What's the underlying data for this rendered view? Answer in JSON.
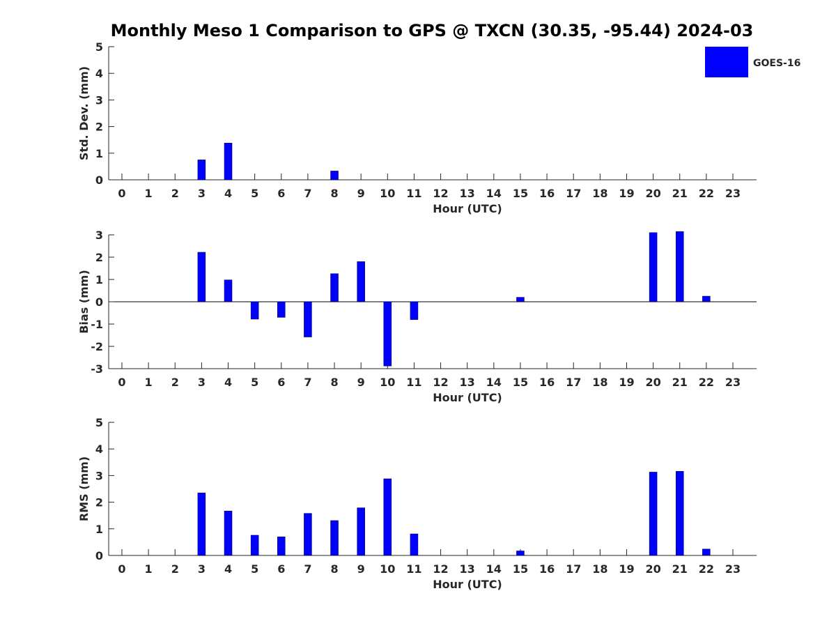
{
  "title": "Monthly Meso 1 Comparison to GPS @ TXCN (30.35, -95.44) 2024-03",
  "legend": {
    "label": "GOES-16",
    "color": "#0000ff",
    "position": "top-right"
  },
  "chart_data": [
    {
      "type": "bar",
      "title": "",
      "xlabel": "Hour (UTC)",
      "ylabel": "Std. Dev. (mm)",
      "ylim": [
        0,
        5
      ],
      "yticks": [
        0,
        1,
        2,
        3,
        4,
        5
      ],
      "grid": false,
      "categories": [
        "0",
        "1",
        "2",
        "3",
        "4",
        "5",
        "6",
        "7",
        "8",
        "9",
        "10",
        "11",
        "12",
        "13",
        "14",
        "15",
        "16",
        "17",
        "18",
        "19",
        "20",
        "21",
        "22",
        "23"
      ],
      "series": [
        {
          "name": "GOES-16",
          "color": "#0000ff",
          "values": [
            0,
            0,
            0,
            0.75,
            1.38,
            0,
            0,
            0,
            0.33,
            0,
            0,
            0,
            0,
            0,
            0,
            0,
            0,
            0,
            0,
            0,
            0,
            0,
            0,
            0
          ]
        }
      ]
    },
    {
      "type": "bar",
      "title": "",
      "xlabel": "Hour (UTC)",
      "ylabel": "Bias (mm)",
      "ylim": [
        -3,
        3
      ],
      "yticks": [
        -3,
        -2,
        -1,
        0,
        1,
        2,
        3
      ],
      "grid": false,
      "zero_line": true,
      "categories": [
        "0",
        "1",
        "2",
        "3",
        "4",
        "5",
        "6",
        "7",
        "8",
        "9",
        "10",
        "11",
        "12",
        "13",
        "14",
        "15",
        "16",
        "17",
        "18",
        "19",
        "20",
        "21",
        "22",
        "23"
      ],
      "series": [
        {
          "name": "GOES-16",
          "color": "#0000ff",
          "values": [
            0,
            0,
            0,
            2.22,
            0.98,
            -0.78,
            -0.7,
            -1.58,
            1.26,
            1.8,
            -2.88,
            -0.8,
            0,
            0,
            0,
            0.2,
            0,
            0,
            0,
            0,
            3.1,
            3.15,
            0.25,
            0
          ]
        }
      ]
    },
    {
      "type": "bar",
      "title": "",
      "xlabel": "Hour (UTC)",
      "ylabel": "RMS (mm)",
      "ylim": [
        0,
        5
      ],
      "yticks": [
        0,
        1,
        2,
        3,
        4,
        5
      ],
      "grid": false,
      "categories": [
        "0",
        "1",
        "2",
        "3",
        "4",
        "5",
        "6",
        "7",
        "8",
        "9",
        "10",
        "11",
        "12",
        "13",
        "14",
        "15",
        "16",
        "17",
        "18",
        "19",
        "20",
        "21",
        "22",
        "23"
      ],
      "series": [
        {
          "name": "GOES-16",
          "color": "#0000ff",
          "values": [
            0,
            0,
            0,
            2.35,
            1.67,
            0.76,
            0.7,
            1.58,
            1.31,
            1.79,
            2.88,
            0.81,
            0,
            0,
            0,
            0.17,
            0,
            0,
            0,
            0,
            3.13,
            3.16,
            0.24,
            0
          ]
        }
      ]
    }
  ]
}
